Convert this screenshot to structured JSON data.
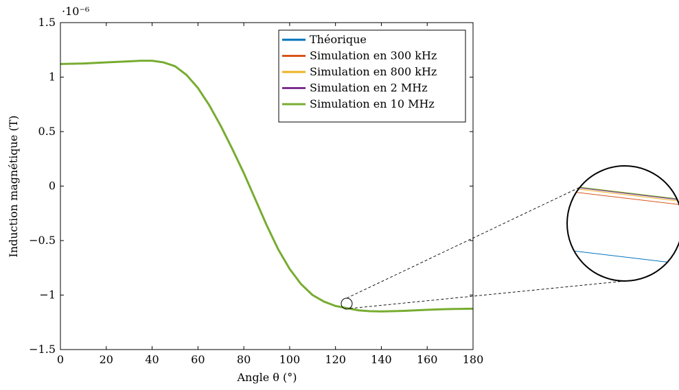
{
  "chart_data": {
    "type": "line",
    "title": "",
    "xlabel": "Angle θ (°)",
    "ylabel": "Induction magnétique (T)",
    "y_exponent": "·10⁻⁶",
    "xlim": [
      0,
      180
    ],
    "ylim": [
      -1.5,
      1.5
    ],
    "xticks": [
      0,
      20,
      40,
      60,
      80,
      100,
      120,
      140,
      160,
      180
    ],
    "xtick_labels": [
      "0",
      "20",
      "40",
      "60",
      "80",
      "100",
      "120",
      "140",
      "160",
      "180"
    ],
    "yticks": [
      -1.5,
      -1,
      -0.5,
      0,
      0.5,
      1,
      1.5
    ],
    "ytick_labels": [
      "−1.5",
      "−1",
      "−0.5",
      "0",
      "0.5",
      "1",
      "1.5"
    ],
    "grid": false,
    "legend_position": "top-right",
    "x": [
      0,
      10,
      20,
      30,
      35,
      40,
      45,
      50,
      55,
      60,
      65,
      70,
      75,
      80,
      85,
      90,
      95,
      100,
      105,
      110,
      115,
      120,
      125,
      130,
      135,
      140,
      145,
      150,
      160,
      170,
      180
    ],
    "series": [
      {
        "name": "Théorique",
        "color": "#0072BD",
        "values": [
          1.12,
          1.125,
          1.135,
          1.145,
          1.15,
          1.15,
          1.135,
          1.1,
          1.02,
          0.9,
          0.74,
          0.55,
          0.34,
          0.12,
          -0.12,
          -0.36,
          -0.58,
          -0.76,
          -0.9,
          -1.0,
          -1.06,
          -1.1,
          -1.12,
          -1.14,
          -1.148,
          -1.15,
          -1.148,
          -1.145,
          -1.135,
          -1.128,
          -1.125
        ]
      },
      {
        "name": "Simulation en 300 kHz",
        "color": "#D95319",
        "values": [
          1.12,
          1.125,
          1.135,
          1.145,
          1.15,
          1.15,
          1.135,
          1.1,
          1.02,
          0.9,
          0.74,
          0.55,
          0.34,
          0.12,
          -0.12,
          -0.36,
          -0.58,
          -0.76,
          -0.9,
          -1.0,
          -1.06,
          -1.1,
          -1.12,
          -1.14,
          -1.148,
          -1.15,
          -1.148,
          -1.145,
          -1.135,
          -1.128,
          -1.125
        ]
      },
      {
        "name": "Simulation en 800 kHz",
        "color": "#EDB120",
        "values": [
          1.12,
          1.125,
          1.135,
          1.145,
          1.15,
          1.15,
          1.135,
          1.1,
          1.02,
          0.9,
          0.74,
          0.55,
          0.34,
          0.12,
          -0.12,
          -0.36,
          -0.58,
          -0.76,
          -0.9,
          -1.0,
          -1.06,
          -1.1,
          -1.12,
          -1.14,
          -1.148,
          -1.15,
          -1.148,
          -1.145,
          -1.135,
          -1.128,
          -1.125
        ]
      },
      {
        "name": "Simulation en 2 MHz",
        "color": "#7E2F8E",
        "values": [
          1.12,
          1.125,
          1.135,
          1.145,
          1.15,
          1.15,
          1.135,
          1.1,
          1.02,
          0.9,
          0.74,
          0.55,
          0.34,
          0.12,
          -0.12,
          -0.36,
          -0.58,
          -0.76,
          -0.9,
          -1.0,
          -1.06,
          -1.1,
          -1.12,
          -1.14,
          -1.148,
          -1.15,
          -1.148,
          -1.145,
          -1.135,
          -1.128,
          -1.125
        ]
      },
      {
        "name": "Simulation en 10 MHz",
        "color": "#77AC30",
        "values": [
          1.12,
          1.125,
          1.135,
          1.145,
          1.15,
          1.15,
          1.135,
          1.1,
          1.02,
          0.9,
          0.74,
          0.55,
          0.34,
          0.12,
          -0.12,
          -0.36,
          -0.58,
          -0.76,
          -0.9,
          -1.0,
          -1.06,
          -1.1,
          -1.12,
          -1.14,
          -1.148,
          -1.15,
          -1.148,
          -1.145,
          -1.135,
          -1.128,
          -1.125
        ]
      }
    ],
    "inset": {
      "type": "zoom",
      "center_x": 125,
      "center_y": -1.1
    }
  }
}
